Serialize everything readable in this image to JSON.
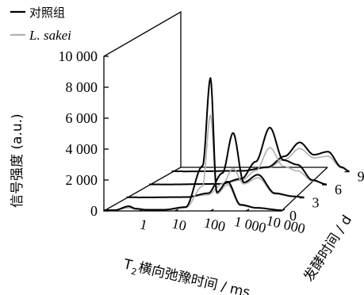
{
  "chart_data": {
    "type": "line",
    "subtype": "waterfall-3d",
    "legend": [
      {
        "name": "对照组",
        "color": "#000000",
        "italic": false
      },
      {
        "name": "L. sakei",
        "color": "#b0b0b0",
        "italic": true
      }
    ],
    "legend_position": "top-left",
    "ylabel": "信号强度 (a.u.)",
    "xlabel_prefix": "T",
    "xlabel_sub": "2",
    "xlabel_suffix": "横向弛豫时间 / ms",
    "zlabel": "发酵时间 / d",
    "x_scale": "log",
    "xlim": [
      0.1,
      10000
    ],
    "ylim": [
      0,
      10000
    ],
    "y_ticks": [
      "10 000",
      "8 000",
      "6 000",
      "4 000",
      "2 000",
      "0"
    ],
    "x_ticks": [
      "1",
      "10",
      "100",
      "1 000",
      "10 000"
    ],
    "z_ticks": [
      "0",
      "3",
      "6",
      "9"
    ],
    "grid": false,
    "series": [
      {
        "name": "对照组",
        "day": 0,
        "color": "#000000",
        "points": [
          [
            0.2,
            50
          ],
          [
            0.5,
            300
          ],
          [
            0.8,
            150
          ],
          [
            1.5,
            80
          ],
          [
            5,
            80
          ],
          [
            20,
            250
          ],
          [
            60,
            2900
          ],
          [
            100,
            8600
          ],
          [
            150,
            1200
          ],
          [
            300,
            1900
          ],
          [
            700,
            400
          ],
          [
            2000,
            200
          ],
          [
            10000,
            50
          ]
        ]
      },
      {
        "name": "L. sakei",
        "day": 0,
        "color": "#b0b0b0",
        "points": [
          [
            0.2,
            50
          ],
          [
            0.5,
            200
          ],
          [
            0.8,
            100
          ],
          [
            5,
            80
          ],
          [
            20,
            200
          ],
          [
            60,
            1600
          ],
          [
            100,
            6200
          ],
          [
            150,
            1100
          ],
          [
            300,
            1700
          ],
          [
            700,
            350
          ],
          [
            2000,
            180
          ],
          [
            10000,
            50
          ]
        ]
      },
      {
        "name": "对照组",
        "day": 3,
        "color": "#000000",
        "points": [
          [
            0.2,
            30
          ],
          [
            5,
            50
          ],
          [
            20,
            300
          ],
          [
            50,
            1600
          ],
          [
            100,
            4200
          ],
          [
            200,
            1000
          ],
          [
            500,
            1500
          ],
          [
            1500,
            300
          ],
          [
            5000,
            100
          ],
          [
            10000,
            40
          ]
        ]
      },
      {
        "name": "L. sakei",
        "day": 3,
        "color": "#b0b0b0",
        "points": [
          [
            0.2,
            30
          ],
          [
            5,
            50
          ],
          [
            20,
            200
          ],
          [
            50,
            900
          ],
          [
            100,
            1900
          ],
          [
            200,
            900
          ],
          [
            500,
            1300
          ],
          [
            1500,
            250
          ],
          [
            5000,
            80
          ],
          [
            10000,
            40
          ]
        ]
      },
      {
        "name": "对照组",
        "day": 6,
        "color": "#000000",
        "points": [
          [
            0.2,
            20
          ],
          [
            10,
            60
          ],
          [
            40,
            400
          ],
          [
            100,
            1500
          ],
          [
            250,
            3700
          ],
          [
            600,
            1600
          ],
          [
            1500,
            1300
          ],
          [
            4000,
            300
          ],
          [
            10000,
            30
          ]
        ]
      },
      {
        "name": "L. sakei",
        "day": 6,
        "color": "#b0b0b0",
        "points": [
          [
            0.2,
            20
          ],
          [
            10,
            60
          ],
          [
            40,
            300
          ],
          [
            100,
            900
          ],
          [
            250,
            2400
          ],
          [
            600,
            1200
          ],
          [
            1500,
            900
          ],
          [
            4000,
            250
          ],
          [
            10000,
            30
          ]
        ]
      },
      {
        "name": "对照组",
        "day": 9,
        "color": "#000000",
        "points": [
          [
            0.2,
            20
          ],
          [
            10,
            60
          ],
          [
            50,
            300
          ],
          [
            150,
            1000
          ],
          [
            400,
            1900
          ],
          [
            1000,
            1100
          ],
          [
            2500,
            1300
          ],
          [
            6000,
            300
          ],
          [
            10000,
            30
          ]
        ]
      },
      {
        "name": "L. sakei",
        "day": 9,
        "color": "#b0b0b0",
        "points": [
          [
            0.2,
            20
          ],
          [
            10,
            60
          ],
          [
            50,
            250
          ],
          [
            150,
            800
          ],
          [
            400,
            1500
          ],
          [
            1000,
            900
          ],
          [
            2500,
            1000
          ],
          [
            6000,
            250
          ],
          [
            10000,
            30
          ]
        ]
      }
    ]
  }
}
